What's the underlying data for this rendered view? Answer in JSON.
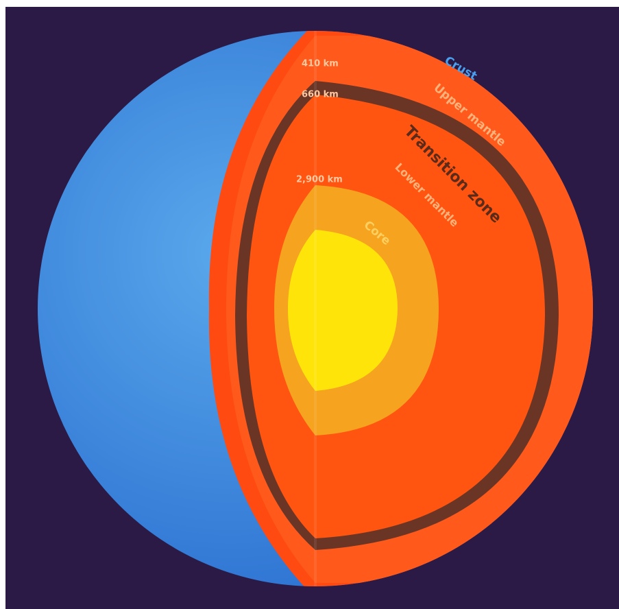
{
  "layers": {
    "crust": "Crust",
    "upper_mantle": "Upper mantle",
    "transition_zone": "Transition zone",
    "lower_mantle": "Lower mantle",
    "core": "Core"
  },
  "depths": [
    "410 km",
    "660 km",
    "2,900 km"
  ]
}
